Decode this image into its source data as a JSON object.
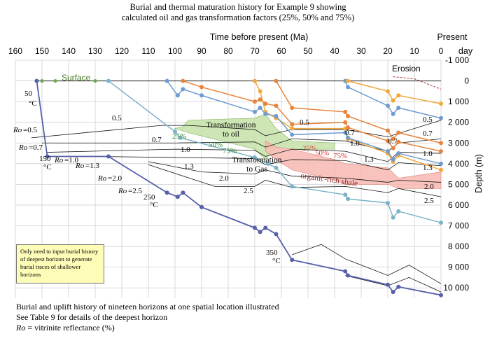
{
  "figure": {
    "title_line1": "Burial and thermal maturation history for Example 9 showing",
    "title_line2": "calculated oil and gas transformation factors (25%, 50% and 75%)",
    "note": "Only need to input burial history of deepest horizon to generate burial traces of shallower horizons",
    "caption_line1": "Burial and uplift history of nineteen horizons at one spatial location illustrated",
    "caption_line2": "See Table 9 for details of the deepest horizon",
    "caption_line3_italic": "Ro",
    "caption_line3_rest": " = vitrinite reflectance (%)",
    "colors": {
      "deepest_horizon": "#5560a8",
      "light_blue": "#6e9bd0",
      "teal": "#7ab3c8",
      "orange": "#e8843a",
      "gold": "#f2a93b",
      "oil_zone": "#c6e2a8",
      "gas_zone": "#f7b8b0",
      "note_box": "#fdfdb8"
    }
  },
  "chart_data": {
    "type": "line",
    "title": "Burial and thermal maturation history for Example 9 showing calculated oil and gas transformation factors (25%, 50% and 75%)",
    "xlabel": "Time before present (Ma)",
    "ylabel": "Depth (m)",
    "x_reversed": true,
    "xlim": [
      160,
      0
    ],
    "ylim": [
      -1000,
      10000
    ],
    "y_reversed": true,
    "x_ticks": [
      "160",
      "150",
      "140",
      "130",
      "120",
      "110",
      "100",
      "90",
      "80",
      "70",
      "60",
      "50",
      "40",
      "30",
      "20",
      "10",
      "0"
    ],
    "x_end_label_line1": "Present",
    "x_end_label_line2": "day",
    "y_ticks": [
      "-1 000",
      "0",
      "1 000",
      "2 000",
      "3 000",
      "4 000",
      "5 000",
      "6 000",
      "7 000",
      "8 000",
      "9 000",
      "10 000"
    ],
    "grid": true,
    "labels": {
      "surface": "Surface",
      "erosion": "Erosion",
      "transformation_oil_1": "Transformation",
      "transformation_oil_2": "to oil",
      "transformation_gas_1": "Transformation",
      "transformation_gas_2": "to Gas",
      "organic_rich_shale": "organic-rich shale",
      "pct25": "25%",
      "pct50": "50%",
      "pct75": "75%",
      "temp_50": "50",
      "temp_150": "150",
      "temp_250": "250",
      "temp_350": "350",
      "deg_c": "°C",
      "ro_prefix": "Ro",
      "ro_05": "=0.5",
      "ro_07": "=0.7",
      "ro_10": "=1.0",
      "ro_13": "=1.3",
      "ro_20": "=2.0",
      "ro_25": "=2.5"
    },
    "series": [
      {
        "role": "deepest horizon",
        "x": [
          152,
          148,
          125,
          103,
          99,
          97,
          90,
          70,
          68,
          66,
          62,
          56,
          36,
          35,
          20,
          18,
          16,
          0
        ],
        "y": [
          0,
          3650,
          3650,
          5400,
          5600,
          5400,
          6100,
          7100,
          7300,
          7100,
          7400,
          8650,
          9200,
          9400,
          9850,
          10200,
          9950,
          10350
        ]
      },
      {
        "role": "shallow horizon",
        "x": [
          125,
          100,
          98,
          70,
          65,
          62,
          56,
          36,
          35,
          20,
          18,
          16,
          0
        ],
        "y": [
          0,
          2450,
          2750,
          3700,
          4000,
          4200,
          5100,
          5500,
          5700,
          5900,
          6600,
          6300,
          6850
        ]
      },
      {
        "role": "shallow horizon",
        "x": [
          70,
          68,
          66,
          62,
          56,
          36,
          35,
          20,
          18,
          16,
          0
        ],
        "y": [
          0,
          500,
          1500,
          1800,
          2300,
          2300,
          2800,
          3500,
          3900,
          3600,
          4300
        ]
      },
      {
        "role": "shallow horizon",
        "x": [
          103,
          99,
          97,
          90,
          70,
          68,
          66,
          62,
          56,
          36,
          35,
          20,
          18,
          16,
          0
        ],
        "y": [
          0,
          700,
          400,
          700,
          1500,
          1300,
          1600,
          1700,
          2600,
          2500,
          2750,
          3400,
          3800,
          3500,
          4000
        ]
      },
      {
        "role": "shallow horizon",
        "x": [
          97,
          90,
          70,
          68,
          66,
          62,
          56,
          36,
          35,
          20,
          18,
          16,
          0
        ],
        "y": [
          0,
          300,
          1000,
          900,
          1100,
          1200,
          2100,
          2000,
          2250,
          2900,
          3250,
          2950,
          3400
        ]
      },
      {
        "role": "shallow horizon",
        "x": [
          62,
          56,
          36,
          35,
          20,
          18,
          16,
          0
        ],
        "y": [
          0,
          1300,
          1500,
          1700,
          2400,
          2800,
          2500,
          3000
        ]
      },
      {
        "role": "shallow horizon",
        "x": [
          36,
          35,
          20,
          18,
          16,
          0
        ],
        "y": [
          0,
          300,
          1200,
          1600,
          1300,
          1800
        ]
      },
      {
        "role": "shallow horizon",
        "x": [
          35,
          20,
          18,
          16,
          0
        ],
        "y": [
          0,
          500,
          950,
          700,
          1100
        ]
      }
    ]
  }
}
